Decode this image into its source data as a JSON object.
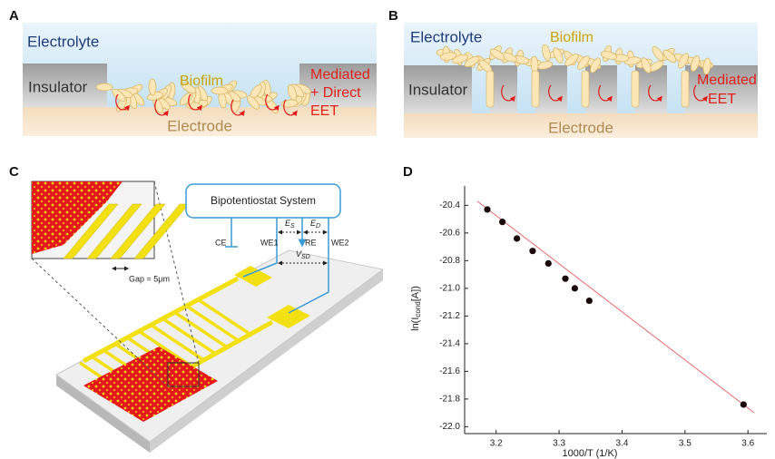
{
  "panels": {
    "A": {
      "label": "A",
      "electrolyte": "Electrolyte",
      "insulator": "Insulator",
      "biofilm": "Biofilm",
      "eet": [
        "Mediated",
        "+ Direct",
        "EET"
      ],
      "electrode": "Electrode"
    },
    "B": {
      "label": "B",
      "electrolyte": "Electrolyte",
      "insulator": "Insulator",
      "biofilm": "Biofilm",
      "eet": [
        "Mediated",
        "EET"
      ],
      "electrode": "Electrode"
    },
    "C": {
      "label": "C",
      "system": "Bipotentiostat System",
      "ce": "CE",
      "we1": "WE1",
      "re": "RE",
      "we2": "WE2",
      "es": {
        "base": "E",
        "sub": "S"
      },
      "ed": {
        "base": "E",
        "sub": "D"
      },
      "vsd": {
        "base": "V",
        "sub": "SD"
      },
      "gap": "Gap = 5μm"
    }
  },
  "chart_data": {
    "type": "scatter",
    "label": "D",
    "xlabel": "1000/T (1/K)",
    "ylabel": {
      "base": "ln(I",
      "sub": "cond",
      "rest": "[A])"
    },
    "x": [
      3.186,
      3.21,
      3.233,
      3.258,
      3.283,
      3.31,
      3.325,
      3.348,
      3.593
    ],
    "values": [
      -20.43,
      -20.52,
      -20.64,
      -20.73,
      -20.82,
      -20.93,
      -21.0,
      -21.09,
      -21.84
    ],
    "color": "#1a0808",
    "fit": {
      "x": [
        3.17,
        3.61
      ],
      "values": [
        -20.37,
        -21.9
      ],
      "color": "#e86a6a"
    },
    "xlim": [
      3.15,
      3.63
    ],
    "ylim": [
      -22.05,
      -20.26
    ],
    "xticks": [
      3.2,
      3.3,
      3.4,
      3.5,
      3.6
    ],
    "yticks": [
      -20.4,
      -20.6,
      -20.8,
      {
        "value": -21.0,
        "label": "-21.0"
      },
      -21.2,
      -21.4,
      -21.6,
      -21.8,
      {
        "value": -22.0,
        "label": "-22.0"
      }
    ]
  }
}
